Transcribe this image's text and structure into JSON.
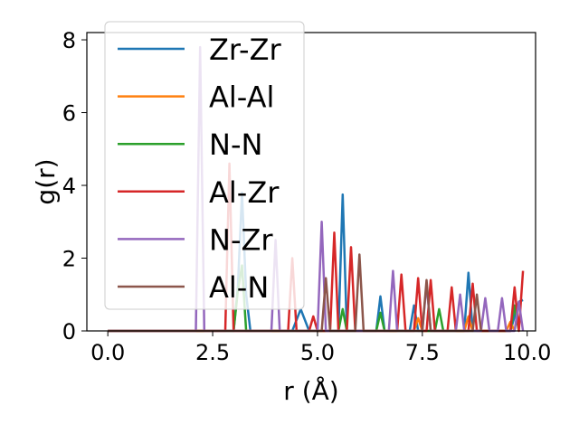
{
  "chart_data": {
    "type": "line",
    "title": "",
    "xlabel": "r (Å)",
    "ylabel": "g(r)",
    "xlim": [
      -0.5,
      10.2
    ],
    "ylim": [
      0,
      8.2
    ],
    "xticks": [
      0.0,
      2.5,
      5.0,
      7.5,
      10.0
    ],
    "xtick_labels": [
      "0.0",
      "2.5",
      "5.0",
      "7.5",
      "10.0"
    ],
    "yticks": [
      0,
      2,
      4,
      6,
      8
    ],
    "ytick_labels": [
      "0",
      "2",
      "4",
      "6",
      "8"
    ],
    "grid": false,
    "legend_position": "upper-left",
    "series": [
      {
        "name": "Zr-Zr",
        "color": "#1f77b4",
        "x": [
          0,
          3.0,
          3.1,
          3.2,
          3.3,
          3.4,
          4.4,
          4.6,
          4.8,
          5.5,
          5.6,
          5.7,
          6.4,
          6.5,
          6.6,
          7.2,
          7.3,
          7.4,
          8.5,
          8.6,
          8.7,
          9.6,
          9.8,
          9.9
        ],
        "y": [
          0,
          0,
          1.2,
          3.8,
          1.0,
          0,
          0,
          0.6,
          0,
          0,
          3.75,
          0,
          0,
          0.95,
          0,
          0,
          0.7,
          0,
          0,
          1.6,
          0,
          0,
          0.8,
          0.85
        ]
      },
      {
        "name": "Al-Al",
        "color": "#ff7f0e",
        "x": [
          0,
          7.3,
          7.4,
          7.5,
          8.5,
          8.6,
          8.7,
          9.5,
          9.6,
          9.7
        ],
        "y": [
          0,
          0,
          0.35,
          0,
          0,
          0.4,
          0,
          0,
          0.25,
          0
        ]
      },
      {
        "name": "N-N",
        "color": "#2ca02c",
        "x": [
          0,
          3.0,
          3.1,
          3.2,
          3.3,
          5.5,
          5.6,
          5.7,
          6.4,
          6.5,
          6.6,
          7.8,
          7.9,
          8.0,
          9.6,
          9.7,
          9.8
        ],
        "y": [
          0,
          0,
          1.1,
          1.8,
          0,
          0,
          0.6,
          0,
          0,
          0.5,
          0,
          0,
          0.6,
          0,
          0,
          0.7,
          0
        ]
      },
      {
        "name": "Al-Zr",
        "color": "#d62728",
        "x": [
          0,
          2.8,
          2.9,
          3.0,
          4.3,
          4.4,
          4.5,
          4.8,
          4.9,
          5.0,
          5.3,
          5.4,
          5.5,
          5.7,
          5.8,
          5.9,
          6.9,
          7.0,
          7.1,
          7.3,
          7.4,
          7.5,
          7.6,
          7.7,
          7.8,
          8.1,
          8.2,
          8.3,
          8.6,
          8.7,
          8.8,
          9.6,
          9.7,
          9.8,
          9.9
        ],
        "y": [
          0,
          0,
          4.6,
          0,
          0,
          2.0,
          0,
          0,
          0.4,
          0,
          0,
          2.7,
          0,
          0,
          2.3,
          0,
          0,
          1.55,
          0,
          0,
          1.45,
          0,
          0,
          1.4,
          0,
          0,
          1.2,
          0,
          0,
          1.3,
          0,
          0,
          1.2,
          0,
          1.65
        ]
      },
      {
        "name": "N-Zr",
        "color": "#9467bd",
        "x": [
          0,
          2.1,
          2.2,
          2.3,
          3.9,
          4.0,
          4.1,
          5.0,
          5.1,
          5.2,
          6.7,
          6.8,
          6.9,
          7.5,
          7.6,
          7.7,
          8.3,
          8.4,
          8.5,
          8.9,
          9.0,
          9.1,
          9.3,
          9.4,
          9.5,
          9.7,
          9.8,
          9.9
        ],
        "y": [
          0,
          0,
          7.8,
          0,
          0,
          2.5,
          0,
          0,
          3.0,
          0,
          0,
          1.65,
          0,
          0,
          1.3,
          0,
          0,
          1.0,
          0,
          0,
          0.9,
          0,
          0,
          0.9,
          0,
          0,
          0.8,
          0
        ]
      },
      {
        "name": "Al-N",
        "color": "#8c564b",
        "x": [
          0,
          5.1,
          5.2,
          5.3,
          5.9,
          6.0,
          6.1,
          7.5,
          7.6,
          7.7,
          8.7,
          8.8,
          8.9
        ],
        "y": [
          0,
          0,
          1.45,
          0,
          0,
          2.1,
          0,
          0,
          1.4,
          0,
          0,
          1.0,
          0
        ]
      }
    ]
  }
}
